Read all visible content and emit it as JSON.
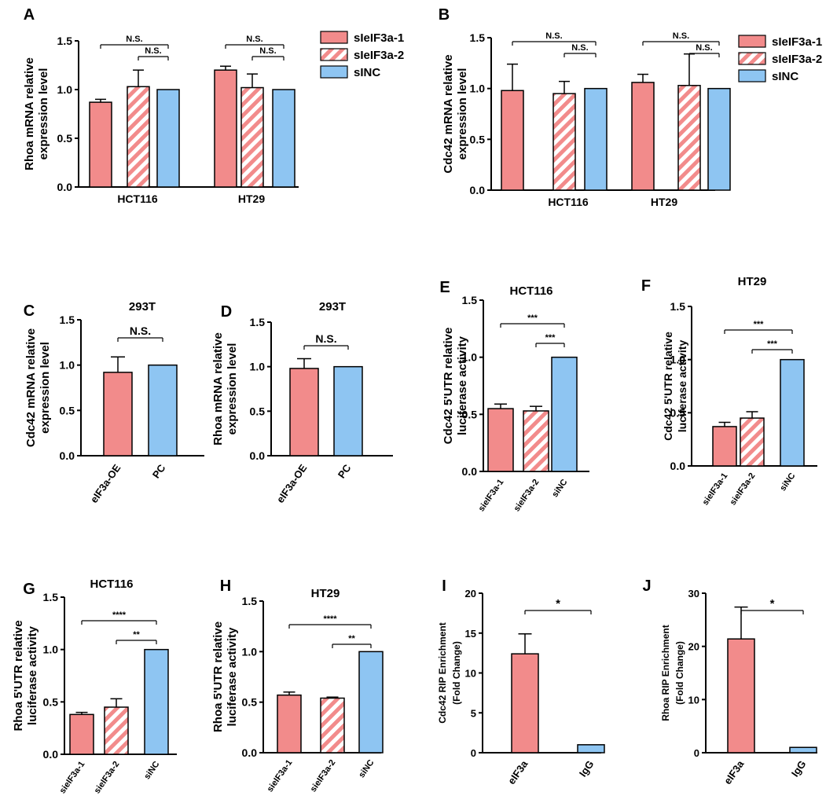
{
  "colors": {
    "pink": "#f28b8b",
    "lightpink": "#f4a6a6",
    "blue": "#8ec5f2",
    "axis": "#000000"
  },
  "chart_data": [
    {
      "panel": "A",
      "type": "bar",
      "title": "",
      "ylabel": [
        "Rhoa mRNA relative",
        "expression level"
      ],
      "categories": [
        "HCT116",
        "HT29"
      ],
      "ylim": [
        0,
        1.5
      ],
      "yticks": [
        "0.0",
        "0.5",
        "1.0",
        "1.5"
      ],
      "series": [
        {
          "name": "sIeIF3a-1",
          "style": "solid",
          "values": [
            0.87,
            1.2
          ],
          "errors": [
            0.03,
            0.04
          ]
        },
        {
          "name": "sIeIF3a-2",
          "style": "hatched",
          "values": [
            1.03,
            1.02
          ],
          "errors": [
            0.17,
            0.14
          ]
        },
        {
          "name": "sINC",
          "style": "blue",
          "values": [
            1.0,
            1.0
          ],
          "errors": [
            0,
            0
          ]
        }
      ],
      "legend": [
        "sIeIF3a-1",
        "sIeIF3a-2",
        "sINC"
      ],
      "annotations": [
        {
          "group": 0,
          "from": 0,
          "to": 2,
          "label": "N.S."
        },
        {
          "group": 0,
          "from": 1,
          "to": 2,
          "label": "N.S."
        },
        {
          "group": 1,
          "from": 0,
          "to": 2,
          "label": "N.S."
        },
        {
          "group": 1,
          "from": 1,
          "to": 2,
          "label": "N.S."
        }
      ]
    },
    {
      "panel": "B",
      "type": "bar",
      "title": "",
      "ylabel": [
        "Cdc42 mRNA relative",
        "expression level"
      ],
      "categories": [
        "HCT116",
        "HT29"
      ],
      "ylim": [
        0,
        1.5
      ],
      "yticks": [
        "0.0",
        "0.5",
        "1.0",
        "1.5"
      ],
      "series": [
        {
          "name": "sIeIF3a-1",
          "style": "solid",
          "values": [
            0.98,
            1.06
          ],
          "errors": [
            0.26,
            0.08
          ]
        },
        {
          "name": "sIeIF3a-2",
          "style": "hatched",
          "values": [
            0.95,
            1.03
          ],
          "errors": [
            0.12,
            0.31
          ]
        },
        {
          "name": "sINC",
          "style": "blue",
          "values": [
            1.0,
            1.0
          ],
          "errors": [
            0,
            0
          ]
        }
      ],
      "legend": [
        "sIeIF3a-1",
        "sIeIF3a-2",
        "sINC"
      ],
      "annotations": [
        {
          "group": 0,
          "from": 0,
          "to": 2,
          "label": "N.S."
        },
        {
          "group": 0,
          "from": 1,
          "to": 2,
          "label": "N.S."
        },
        {
          "group": 1,
          "from": 0,
          "to": 2,
          "label": "N.S."
        },
        {
          "group": 1,
          "from": 1,
          "to": 2,
          "label": "N.S."
        }
      ]
    },
    {
      "panel": "C",
      "type": "bar",
      "title": "293T",
      "ylabel": [
        "Cdc42 mRNA relative",
        "expression level"
      ],
      "categories": [
        "eIF3a-OE",
        "PC"
      ],
      "ylim": [
        0,
        1.5
      ],
      "yticks": [
        "0.0",
        "0.5",
        "1.0",
        "1.5"
      ],
      "bars": [
        {
          "label": "eIF3a-OE",
          "style": "solid",
          "value": 0.92,
          "error": 0.17
        },
        {
          "label": "PC",
          "style": "blue",
          "value": 1.0,
          "error": 0
        }
      ],
      "annotations": [
        {
          "from": 0,
          "to": 1,
          "label": "N.S."
        }
      ]
    },
    {
      "panel": "D",
      "type": "bar",
      "title": "293T",
      "ylabel": [
        "Rhoa mRNA relative",
        "expression level"
      ],
      "categories": [
        "eIF3a-OE",
        "PC"
      ],
      "ylim": [
        0,
        1.5
      ],
      "yticks": [
        "0.0",
        "0.5",
        "1.0",
        "1.5"
      ],
      "bars": [
        {
          "label": "eIF3a-OE",
          "style": "solid",
          "value": 0.98,
          "error": 0.11
        },
        {
          "label": "PC",
          "style": "blue",
          "value": 1.0,
          "error": 0
        }
      ],
      "annotations": [
        {
          "from": 0,
          "to": 1,
          "label": "N.S."
        }
      ]
    },
    {
      "panel": "E",
      "type": "bar",
      "title": "HCT116",
      "ylabel": [
        "Cdc42 5'UTR relative",
        "luciferase activity"
      ],
      "categories": [
        "sieIF3a-1",
        "sieIF3a-2",
        "siNC"
      ],
      "ylim": [
        0,
        1.5
      ],
      "yticks": [
        "0.0",
        "0.5",
        "1.0",
        "1.5"
      ],
      "bars": [
        {
          "label": "sieIF3a-1",
          "style": "solid",
          "value": 0.55,
          "error": 0.04
        },
        {
          "label": "sieIF3a-2",
          "style": "hatched",
          "value": 0.53,
          "error": 0.04
        },
        {
          "label": "siNC",
          "style": "blue",
          "value": 1.0,
          "error": 0
        }
      ],
      "annotations": [
        {
          "from": 0,
          "to": 2,
          "label": "***"
        },
        {
          "from": 1,
          "to": 2,
          "label": "***"
        }
      ]
    },
    {
      "panel": "F",
      "type": "bar",
      "title": "HT29",
      "ylabel": [
        "Cdc42 5'UTR relative",
        "luciferase activity"
      ],
      "categories": [
        "sieIF3a-1",
        "sieIF3a-2",
        "siNC"
      ],
      "ylim": [
        0,
        1.5
      ],
      "yticks": [
        "0.0",
        "0.5",
        "1.0",
        "1.5"
      ],
      "bars": [
        {
          "label": "sieIF3a-1",
          "style": "solid",
          "value": 0.37,
          "error": 0.04
        },
        {
          "label": "sieIF3a-2",
          "style": "hatched",
          "value": 0.45,
          "error": 0.06
        },
        {
          "label": "siNC",
          "style": "blue",
          "value": 1.0,
          "error": 0
        }
      ],
      "annotations": [
        {
          "from": 0,
          "to": 2,
          "label": "***"
        },
        {
          "from": 1,
          "to": 2,
          "label": "***"
        }
      ]
    },
    {
      "panel": "G",
      "type": "bar",
      "title": "HCT116",
      "ylabel": [
        "Rhoa 5'UTR relative",
        "luciferase activity"
      ],
      "categories": [
        "sieIF3a-1",
        "sieIF3a-2",
        "siNC"
      ],
      "ylim": [
        0,
        1.5
      ],
      "yticks": [
        "0.0",
        "0.5",
        "1.0",
        "1.5"
      ],
      "bars": [
        {
          "label": "sieIF3a-1",
          "style": "solid",
          "value": 0.38,
          "error": 0.02
        },
        {
          "label": "sieIF3a-2",
          "style": "hatched",
          "value": 0.45,
          "error": 0.08
        },
        {
          "label": "siNC",
          "style": "blue",
          "value": 1.0,
          "error": 0
        }
      ],
      "annotations": [
        {
          "from": 0,
          "to": 2,
          "label": "****"
        },
        {
          "from": 1,
          "to": 2,
          "label": "**"
        }
      ]
    },
    {
      "panel": "H",
      "type": "bar",
      "title": "HT29",
      "ylabel": [
        "Rhoa 5'UTR relative",
        "luciferase activity"
      ],
      "categories": [
        "sieIF3a-1",
        "sieIF3a-2",
        "siNC"
      ],
      "ylim": [
        0,
        1.5
      ],
      "yticks": [
        "0.0",
        "0.5",
        "1.0",
        "1.5"
      ],
      "bars": [
        {
          "label": "sieIF3a-1",
          "style": "solid",
          "value": 0.57,
          "error": 0.03
        },
        {
          "label": "sieIF3a-2",
          "style": "hatched",
          "value": 0.54,
          "error": 0.01
        },
        {
          "label": "siNC",
          "style": "blue",
          "value": 1.0,
          "error": 0
        }
      ],
      "annotations": [
        {
          "from": 0,
          "to": 2,
          "label": "****"
        },
        {
          "from": 1,
          "to": 2,
          "label": "**"
        }
      ]
    },
    {
      "panel": "I",
      "type": "bar",
      "title": "",
      "ylabel": [
        "Cdc42 RIP Enrichment",
        "(Fold Change)"
      ],
      "categories": [
        "eIF3a",
        "IgG"
      ],
      "ylim": [
        0,
        20
      ],
      "yticks": [
        "0",
        "5",
        "10",
        "15",
        "20"
      ],
      "bars": [
        {
          "label": "eIF3a",
          "style": "solid",
          "value": 12.4,
          "error": 2.5
        },
        {
          "label": "IgG",
          "style": "blue",
          "value": 1.0,
          "error": 0
        }
      ],
      "annotations": [
        {
          "from": 0,
          "to": 1,
          "label": "*"
        }
      ]
    },
    {
      "panel": "J",
      "type": "bar",
      "title": "",
      "ylabel": [
        "Rhoa RIP Enrichment",
        "(Fold Change)"
      ],
      "categories": [
        "eIF3a",
        "IgG"
      ],
      "ylim": [
        0,
        30
      ],
      "yticks": [
        "0",
        "10",
        "20",
        "30"
      ],
      "bars": [
        {
          "label": "eIF3a",
          "style": "solid",
          "value": 21.4,
          "error": 6.0
        },
        {
          "label": "IgG",
          "style": "blue",
          "value": 1.0,
          "error": 0
        }
      ],
      "annotations": [
        {
          "from": 0,
          "to": 1,
          "label": "*"
        }
      ]
    }
  ]
}
